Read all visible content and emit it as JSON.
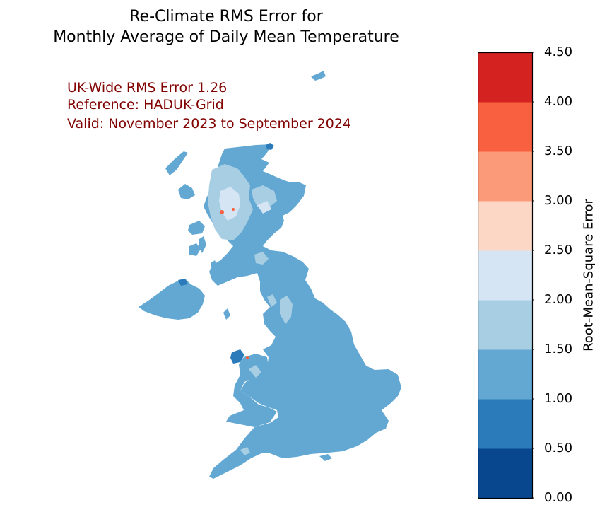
{
  "title": {
    "line1": "Re-Climate RMS Error for",
    "line2": "Monthly Average of Daily Mean Temperature"
  },
  "annotations": {
    "uk_wide": "UK-Wide RMS Error 1.26",
    "reference": "Reference: HADUK-Grid",
    "valid": "Valid: November 2023 to September 2024"
  },
  "colorbar": {
    "label": "Root-Mean-Square Error",
    "ticks": [
      "0.00",
      "0.50",
      "1.00",
      "1.50",
      "2.00",
      "2.50",
      "3.00",
      "3.50",
      "4.00",
      "4.50"
    ],
    "levels": [
      0,
      0.5,
      1.0,
      1.5,
      2.0,
      2.5,
      3.0,
      3.5,
      4.0,
      4.5
    ],
    "colors": [
      "#08478e",
      "#2b7bba",
      "#63a8d3",
      "#a8cee4",
      "#d5e5f4",
      "#fdd7c6",
      "#fb9a79",
      "#f9603f",
      "#d42221"
    ]
  },
  "map": {
    "uk_wide_rms": 1.26,
    "dominant_band_color": "#63a8d3",
    "highland_band_color": "#a8cee4",
    "hotspot_color": "#f9603f",
    "low_band_color": "#2b7bba"
  }
}
